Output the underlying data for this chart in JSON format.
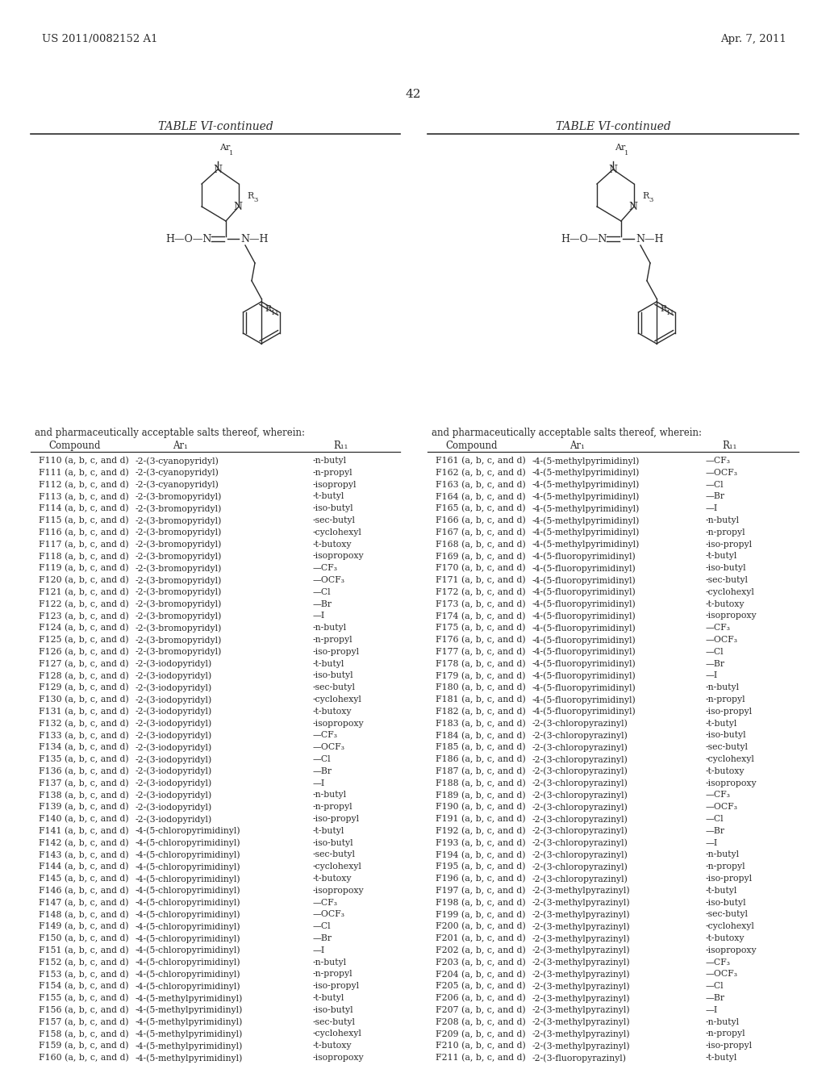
{
  "page_header_left": "US 2011/0082152 A1",
  "page_header_right": "Apr. 7, 2011",
  "page_number": "42",
  "left_table_title": "TABLE VI-continued",
  "right_table_title": "TABLE VI-continued",
  "phrase": "and pharmaceutically acceptable salts thereof, wherein:",
  "col_headers": [
    "Compound",
    "Ar₁",
    "R₁₁"
  ],
  "left_compounds": [
    [
      "F110 (a, b, c, and d)",
      "-2-(3-cyanopyridyl)",
      "-n-butyl"
    ],
    [
      "F111 (a, b, c, and d)",
      "-2-(3-cyanopyridyl)",
      "-n-propyl"
    ],
    [
      "F112 (a, b, c, and d)",
      "-2-(3-cyanopyridyl)",
      "-isopropyl"
    ],
    [
      "F113 (a, b, c, and d)",
      "-2-(3-bromopyridyl)",
      "-t-butyl"
    ],
    [
      "F114 (a, b, c, and d)",
      "-2-(3-bromopyridyl)",
      "-iso-butyl"
    ],
    [
      "F115 (a, b, c, and d)",
      "-2-(3-bromopyridyl)",
      "-sec-butyl"
    ],
    [
      "F116 (a, b, c, and d)",
      "-2-(3-bromopyridyl)",
      "-cyclohexyl"
    ],
    [
      "F117 (a, b, c, and d)",
      "-2-(3-bromopyridyl)",
      "-t-butoxy"
    ],
    [
      "F118 (a, b, c, and d)",
      "-2-(3-bromopyridyl)",
      "-isopropoxy"
    ],
    [
      "F119 (a, b, c, and d)",
      "-2-(3-bromopyridyl)",
      "—CF₃"
    ],
    [
      "F120 (a, b, c, and d)",
      "-2-(3-bromopyridyl)",
      "—OCF₃"
    ],
    [
      "F121 (a, b, c, and d)",
      "-2-(3-bromopyridyl)",
      "—Cl"
    ],
    [
      "F122 (a, b, c, and d)",
      "-2-(3-bromopyridyl)",
      "—Br"
    ],
    [
      "F123 (a, b, c, and d)",
      "-2-(3-bromopyridyl)",
      "—I"
    ],
    [
      "F124 (a, b, c, and d)",
      "-2-(3-bromopyridyl)",
      "-n-butyl"
    ],
    [
      "F125 (a, b, c, and d)",
      "-2-(3-bromopyridyl)",
      "-n-propyl"
    ],
    [
      "F126 (a, b, c, and d)",
      "-2-(3-bromopyridyl)",
      "-iso-propyl"
    ],
    [
      "F127 (a, b, c, and d)",
      "-2-(3-iodopyridyl)",
      "-t-butyl"
    ],
    [
      "F128 (a, b, c, and d)",
      "-2-(3-iodopyridyl)",
      "-iso-butyl"
    ],
    [
      "F129 (a, b, c, and d)",
      "-2-(3-iodopyridyl)",
      "-sec-butyl"
    ],
    [
      "F130 (a, b, c, and d)",
      "-2-(3-iodopyridyl)",
      "-cyclohexyl"
    ],
    [
      "F131 (a, b, c, and d)",
      "-2-(3-iodopyridyl)",
      "-t-butoxy"
    ],
    [
      "F132 (a, b, c, and d)",
      "-2-(3-iodopyridyl)",
      "-isopropoxy"
    ],
    [
      "F133 (a, b, c, and d)",
      "-2-(3-iodopyridyl)",
      "—CF₃"
    ],
    [
      "F134 (a, b, c, and d)",
      "-2-(3-iodopyridyl)",
      "—OCF₃"
    ],
    [
      "F135 (a, b, c, and d)",
      "-2-(3-iodopyridyl)",
      "—Cl"
    ],
    [
      "F136 (a, b, c, and d)",
      "-2-(3-iodopyridyl)",
      "—Br"
    ],
    [
      "F137 (a, b, c, and d)",
      "-2-(3-iodopyridyl)",
      "—I"
    ],
    [
      "F138 (a, b, c, and d)",
      "-2-(3-iodopyridyl)",
      "-n-butyl"
    ],
    [
      "F139 (a, b, c, and d)",
      "-2-(3-iodopyridyl)",
      "-n-propyl"
    ],
    [
      "F140 (a, b, c, and d)",
      "-2-(3-iodopyridyl)",
      "-iso-propyl"
    ],
    [
      "F141 (a, b, c, and d)",
      "-4-(5-chloropyrimidinyl)",
      "-t-butyl"
    ],
    [
      "F142 (a, b, c, and d)",
      "-4-(5-chloropyrimidinyl)",
      "-iso-butyl"
    ],
    [
      "F143 (a, b, c, and d)",
      "-4-(5-chloropyrimidinyl)",
      "-sec-butyl"
    ],
    [
      "F144 (a, b, c, and d)",
      "-4-(5-chloropyrimidinyl)",
      "-cyclohexyl"
    ],
    [
      "F145 (a, b, c, and d)",
      "-4-(5-chloropyrimidinyl)",
      "-t-butoxy"
    ],
    [
      "F146 (a, b, c, and d)",
      "-4-(5-chloropyrimidinyl)",
      "-isopropoxy"
    ],
    [
      "F147 (a, b, c, and d)",
      "-4-(5-chloropyrimidinyl)",
      "—CF₃"
    ],
    [
      "F148 (a, b, c, and d)",
      "-4-(5-chloropyrimidinyl)",
      "—OCF₃"
    ],
    [
      "F149 (a, b, c, and d)",
      "-4-(5-chloropyrimidinyl)",
      "—Cl"
    ],
    [
      "F150 (a, b, c, and d)",
      "-4-(5-chloropyrimidinyl)",
      "—Br"
    ],
    [
      "F151 (a, b, c, and d)",
      "-4-(5-chloropyrimidinyl)",
      "—I"
    ],
    [
      "F152 (a, b, c, and d)",
      "-4-(5-chloropyrimidinyl)",
      "-n-butyl"
    ],
    [
      "F153 (a, b, c, and d)",
      "-4-(5-chloropyrimidinyl)",
      "-n-propyl"
    ],
    [
      "F154 (a, b, c, and d)",
      "-4-(5-chloropyrimidinyl)",
      "-iso-propyl"
    ],
    [
      "F155 (a, b, c, and d)",
      "-4-(5-methylpyrimidinyl)",
      "-t-butyl"
    ],
    [
      "F156 (a, b, c, and d)",
      "-4-(5-methylpyrimidinyl)",
      "-iso-butyl"
    ],
    [
      "F157 (a, b, c, and d)",
      "-4-(5-methylpyrimidinyl)",
      "-sec-butyl"
    ],
    [
      "F158 (a, b, c, and d)",
      "-4-(5-methylpyrimidinyl)",
      "-cyclohexyl"
    ],
    [
      "F159 (a, b, c, and d)",
      "-4-(5-methylpyrimidinyl)",
      "-t-butoxy"
    ],
    [
      "F160 (a, b, c, and d)",
      "-4-(5-methylpyrimidinyl)",
      "-isopropoxy"
    ]
  ],
  "right_compounds": [
    [
      "F161 (a, b, c, and d)",
      "-4-(5-methylpyrimidinyl)",
      "—CF₃"
    ],
    [
      "F162 (a, b, c, and d)",
      "-4-(5-methylpyrimidinyl)",
      "—OCF₃"
    ],
    [
      "F163 (a, b, c, and d)",
      "-4-(5-methylpyrimidinyl)",
      "—Cl"
    ],
    [
      "F164 (a, b, c, and d)",
      "-4-(5-methylpyrimidinyl)",
      "—Br"
    ],
    [
      "F165 (a, b, c, and d)",
      "-4-(5-methylpyrimidinyl)",
      "—I"
    ],
    [
      "F166 (a, b, c, and d)",
      "-4-(5-methylpyrimidinyl)",
      "-n-butyl"
    ],
    [
      "F167 (a, b, c, and d)",
      "-4-(5-methylpyrimidinyl)",
      "-n-propyl"
    ],
    [
      "F168 (a, b, c, and d)",
      "-4-(5-methylpyrimidinyl)",
      "-iso-propyl"
    ],
    [
      "F169 (a, b, c, and d)",
      "-4-(5-fluoropyrimidinyl)",
      "-t-butyl"
    ],
    [
      "F170 (a, b, c, and d)",
      "-4-(5-fluoropyrimidinyl)",
      "-iso-butyl"
    ],
    [
      "F171 (a, b, c, and d)",
      "-4-(5-fluoropyrimidinyl)",
      "-sec-butyl"
    ],
    [
      "F172 (a, b, c, and d)",
      "-4-(5-fluoropyrimidinyl)",
      "-cyclohexyl"
    ],
    [
      "F173 (a, b, c, and d)",
      "-4-(5-fluoropyrimidinyl)",
      "-t-butoxy"
    ],
    [
      "F174 (a, b, c, and d)",
      "-4-(5-fluoropyrimidinyl)",
      "-isopropoxy"
    ],
    [
      "F175 (a, b, c, and d)",
      "-4-(5-fluoropyrimidinyl)",
      "—CF₃"
    ],
    [
      "F176 (a, b, c, and d)",
      "-4-(5-fluoropyrimidinyl)",
      "—OCF₃"
    ],
    [
      "F177 (a, b, c, and d)",
      "-4-(5-fluoropyrimidinyl)",
      "—Cl"
    ],
    [
      "F178 (a, b, c, and d)",
      "-4-(5-fluoropyrimidinyl)",
      "—Br"
    ],
    [
      "F179 (a, b, c, and d)",
      "-4-(5-fluoropyrimidinyl)",
      "—I"
    ],
    [
      "F180 (a, b, c, and d)",
      "-4-(5-fluoropyrimidinyl)",
      "-n-butyl"
    ],
    [
      "F181 (a, b, c, and d)",
      "-4-(5-fluoropyrimidinyl)",
      "-n-propyl"
    ],
    [
      "F182 (a, b, c, and d)",
      "-4-(5-fluoropyrimidinyl)",
      "-iso-propyl"
    ],
    [
      "F183 (a, b, c, and d)",
      "-2-(3-chloropyrazinyl)",
      "-t-butyl"
    ],
    [
      "F184 (a, b, c, and d)",
      "-2-(3-chloropyrazinyl)",
      "-iso-butyl"
    ],
    [
      "F185 (a, b, c, and d)",
      "-2-(3-chloropyrazinyl)",
      "-sec-butyl"
    ],
    [
      "F186 (a, b, c, and d)",
      "-2-(3-chloropyrazinyl)",
      "-cyclohexyl"
    ],
    [
      "F187 (a, b, c, and d)",
      "-2-(3-chloropyrazinyl)",
      "-t-butoxy"
    ],
    [
      "F188 (a, b, c, and d)",
      "-2-(3-chloropyrazinyl)",
      "-isopropoxy"
    ],
    [
      "F189 (a, b, c, and d)",
      "-2-(3-chloropyrazinyl)",
      "—CF₃"
    ],
    [
      "F190 (a, b, c, and d)",
      "-2-(3-chloropyrazinyl)",
      "—OCF₃"
    ],
    [
      "F191 (a, b, c, and d)",
      "-2-(3-chloropyrazinyl)",
      "—Cl"
    ],
    [
      "F192 (a, b, c, and d)",
      "-2-(3-chloropyrazinyl)",
      "—Br"
    ],
    [
      "F193 (a, b, c, and d)",
      "-2-(3-chloropyrazinyl)",
      "—I"
    ],
    [
      "F194 (a, b, c, and d)",
      "-2-(3-chloropyrazinyl)",
      "-n-butyl"
    ],
    [
      "F195 (a, b, c, and d)",
      "-2-(3-chloropyrazinyl)",
      "-n-propyl"
    ],
    [
      "F196 (a, b, c, and d)",
      "-2-(3-chloropyrazinyl)",
      "-iso-propyl"
    ],
    [
      "F197 (a, b, c, and d)",
      "-2-(3-methylpyrazinyl)",
      "-t-butyl"
    ],
    [
      "F198 (a, b, c, and d)",
      "-2-(3-methylpyrazinyl)",
      "-iso-butyl"
    ],
    [
      "F199 (a, b, c, and d)",
      "-2-(3-methylpyrazinyl)",
      "-sec-butyl"
    ],
    [
      "F200 (a, b, c, and d)",
      "-2-(3-methylpyrazinyl)",
      "-cyclohexyl"
    ],
    [
      "F201 (a, b, c, and d)",
      "-2-(3-methylpyrazinyl)",
      "-t-butoxy"
    ],
    [
      "F202 (a, b, c, and d)",
      "-2-(3-methylpyrazinyl)",
      "-isopropoxy"
    ],
    [
      "F203 (a, b, c, and d)",
      "-2-(3-methylpyrazinyl)",
      "—CF₃"
    ],
    [
      "F204 (a, b, c, and d)",
      "-2-(3-methylpyrazinyl)",
      "—OCF₃"
    ],
    [
      "F205 (a, b, c, and d)",
      "-2-(3-methylpyrazinyl)",
      "—Cl"
    ],
    [
      "F206 (a, b, c, and d)",
      "-2-(3-methylpyrazinyl)",
      "—Br"
    ],
    [
      "F207 (a, b, c, and d)",
      "-2-(3-methylpyrazinyl)",
      "—I"
    ],
    [
      "F208 (a, b, c, and d)",
      "-2-(3-methylpyrazinyl)",
      "-n-butyl"
    ],
    [
      "F209 (a, b, c, and d)",
      "-2-(3-methylpyrazinyl)",
      "-n-propyl"
    ],
    [
      "F210 (a, b, c, and d)",
      "-2-(3-methylpyrazinyl)",
      "-iso-propyl"
    ],
    [
      "F211 (a, b, c, and d)",
      "-2-(3-fluoropyrazinyl)",
      "-t-butyl"
    ]
  ],
  "background_color": "#ffffff",
  "text_color": "#2b2b2b",
  "font_family": "DejaVu Serif"
}
